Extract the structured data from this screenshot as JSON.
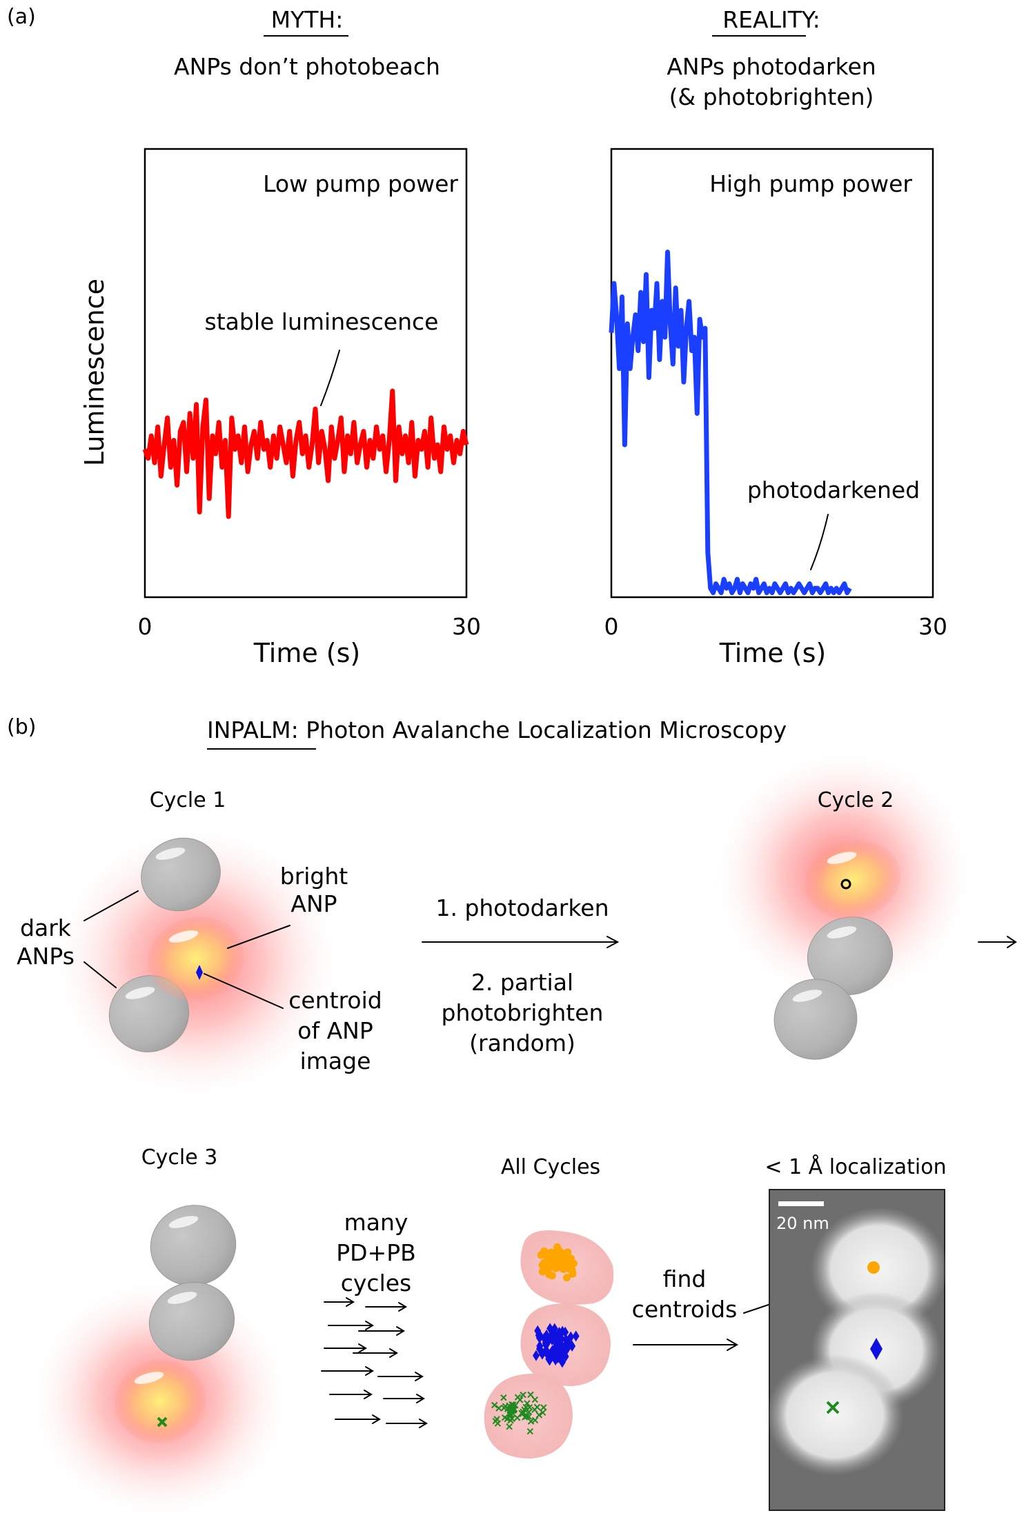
{
  "panel_a": {
    "label": "(a)",
    "myth": {
      "heading": "MYTH:",
      "subtitle": "ANPs don’t photobeach",
      "chart": {
        "type": "line",
        "annotation": "Low pump power",
        "callout": "stable luminescence",
        "ylabel": "Luminescence",
        "xlabel": "Time (s)",
        "xticks": [
          "0",
          "30"
        ],
        "xlim": [
          0,
          30
        ],
        "ylim": [
          0,
          1
        ],
        "series_color": "#ff0000",
        "x": [
          0,
          0.3,
          0.6,
          0.9,
          1.2,
          1.5,
          1.8,
          2.1,
          2.4,
          2.7,
          3.0,
          3.3,
          3.6,
          3.9,
          4.2,
          4.5,
          4.8,
          5.1,
          5.4,
          5.7,
          6.0,
          6.3,
          6.6,
          6.9,
          7.2,
          7.5,
          7.8,
          8.1,
          8.4,
          8.7,
          9.0,
          9.3,
          9.6,
          9.9,
          10.2,
          10.5,
          10.8,
          11.1,
          11.4,
          11.7,
          12.0,
          12.3,
          12.6,
          12.9,
          13.2,
          13.5,
          13.8,
          14.1,
          14.4,
          14.7,
          15.0,
          15.3,
          15.6,
          15.9,
          16.2,
          16.5,
          16.8,
          17.1,
          17.4,
          17.7,
          18.0,
          18.3,
          18.6,
          18.9,
          19.2,
          19.5,
          19.8,
          20.1,
          20.4,
          20.7,
          21.0,
          21.3,
          21.6,
          21.9,
          22.2,
          22.5,
          22.8,
          23.1,
          23.4,
          23.7,
          24.0,
          24.3,
          24.6,
          24.9,
          25.2,
          25.5,
          25.8,
          26.1,
          26.4,
          26.7,
          27.0,
          27.3,
          27.6,
          27.9,
          28.2,
          28.5,
          28.8,
          29.1,
          29.4,
          29.7,
          30.0
        ],
        "y": [
          0.33,
          0.31,
          0.36,
          0.3,
          0.38,
          0.27,
          0.34,
          0.4,
          0.29,
          0.35,
          0.25,
          0.37,
          0.39,
          0.28,
          0.41,
          0.31,
          0.43,
          0.19,
          0.38,
          0.44,
          0.22,
          0.36,
          0.32,
          0.39,
          0.29,
          0.35,
          0.18,
          0.4,
          0.33,
          0.36,
          0.3,
          0.38,
          0.28,
          0.34,
          0.37,
          0.31,
          0.39,
          0.33,
          0.35,
          0.29,
          0.36,
          0.31,
          0.38,
          0.34,
          0.3,
          0.37,
          0.27,
          0.35,
          0.39,
          0.32,
          0.36,
          0.29,
          0.34,
          0.42,
          0.3,
          0.37,
          0.33,
          0.26,
          0.38,
          0.31,
          0.35,
          0.4,
          0.28,
          0.36,
          0.32,
          0.39,
          0.3,
          0.34,
          0.37,
          0.29,
          0.35,
          0.31,
          0.38,
          0.33,
          0.36,
          0.28,
          0.35,
          0.46,
          0.26,
          0.38,
          0.32,
          0.36,
          0.3,
          0.39,
          0.27,
          0.35,
          0.33,
          0.37,
          0.29,
          0.4,
          0.31,
          0.34,
          0.28,
          0.38,
          0.33,
          0.36,
          0.3,
          0.35,
          0.32,
          0.37,
          0.34
        ]
      }
    },
    "reality": {
      "heading": "REALITY:",
      "subtitle_line1": "ANPs photodarken",
      "subtitle_line2": "(& photobrighten)",
      "chart": {
        "type": "line",
        "annotation": "High pump power",
        "callout": "photodarkened",
        "xlabel": "Time (s)",
        "xticks": [
          "0",
          "30"
        ],
        "xlim": [
          0,
          30
        ],
        "ylim": [
          0,
          1
        ],
        "series_color": "#1a3fff",
        "x": [
          0,
          0.25,
          0.5,
          0.75,
          1.0,
          1.25,
          1.5,
          1.75,
          2.0,
          2.25,
          2.5,
          2.75,
          3.0,
          3.25,
          3.5,
          3.75,
          4.0,
          4.25,
          4.5,
          4.75,
          5.0,
          5.25,
          5.5,
          5.75,
          6.0,
          6.25,
          6.5,
          6.75,
          7.0,
          7.25,
          7.5,
          7.75,
          8.0,
          8.25,
          8.5,
          8.75,
          9.0,
          9.25,
          9.5,
          9.75,
          10.0,
          10.25,
          10.5,
          10.75,
          11.0,
          11.25,
          11.5,
          11.75,
          12.0,
          12.25,
          12.5,
          12.75,
          13.0,
          13.25,
          13.5,
          13.75,
          14.0,
          14.25,
          14.5,
          14.75,
          15.0,
          15.25,
          15.5,
          15.75,
          16.0,
          16.25,
          16.5,
          16.75,
          17.0,
          17.25,
          17.5,
          17.75,
          18.0,
          18.25,
          18.5,
          18.75,
          19.0,
          19.25,
          19.5,
          19.75,
          20.0,
          20.25,
          20.5,
          20.75,
          21.0,
          21.25,
          21.5,
          21.75,
          22.0,
          22.25
        ],
        "y": [
          0.59,
          0.7,
          0.62,
          0.51,
          0.67,
          0.34,
          0.61,
          0.51,
          0.58,
          0.63,
          0.55,
          0.68,
          0.57,
          0.72,
          0.49,
          0.64,
          0.6,
          0.7,
          0.53,
          0.66,
          0.58,
          0.77,
          0.61,
          0.52,
          0.69,
          0.56,
          0.64,
          0.48,
          0.6,
          0.66,
          0.55,
          0.58,
          0.41,
          0.62,
          0.58,
          0.6,
          0.1,
          0.02,
          0.01,
          0.03,
          0.02,
          0.01,
          0.04,
          0.02,
          0.03,
          0.01,
          0.02,
          0.04,
          0.01,
          0.03,
          0.02,
          0.01,
          0.03,
          0.02,
          0.04,
          0.01,
          0.02,
          0.03,
          0.01,
          0.02,
          0.01,
          0.03,
          0.02,
          0.01,
          0.02,
          0.03,
          0.01,
          0.02,
          0.01,
          0.02,
          0.03,
          0.02,
          0.01,
          0.02,
          0.03,
          0.01,
          0.02,
          0.02,
          0.01,
          0.02,
          0.03,
          0.01,
          0.02,
          0.01,
          0.02,
          0.01,
          0.02,
          0.03,
          0.01,
          0.02
        ]
      }
    }
  },
  "panel_b": {
    "label": "(b)",
    "title_underlined": "INPALM",
    "title_rest": ": Photon Avalanche Localization Microscopy",
    "cycle1": {
      "title": "Cycle 1",
      "dark_label_1": "dark",
      "dark_label_2": "ANPs",
      "bright_label_1": "bright",
      "bright_label_2": "ANP",
      "centroid_label_1": "centroid",
      "centroid_label_2": "of ANP",
      "centroid_label_3": "image"
    },
    "step_arrow": {
      "step1": "1.  photodarken",
      "step2_line1": "2. partial",
      "step2_line2": "photobrighten",
      "step2_line3": "(random)"
    },
    "cycle2": {
      "title": "Cycle 2"
    },
    "cycle3": {
      "title": "Cycle 3"
    },
    "many_cycles": {
      "line1": "many",
      "line2": "PD+PB",
      "line3": "cycles"
    },
    "all_cycles": {
      "title": "All Cycles"
    },
    "find_centroids": {
      "line1": "find",
      "line2": "centroids"
    },
    "localization": {
      "title": "< 1 Å localization",
      "scale_bar": "20 nm"
    },
    "marker_colors": {
      "orange": "#ffa500",
      "blue": "#1010e0",
      "green": "#1f8a1f"
    }
  }
}
